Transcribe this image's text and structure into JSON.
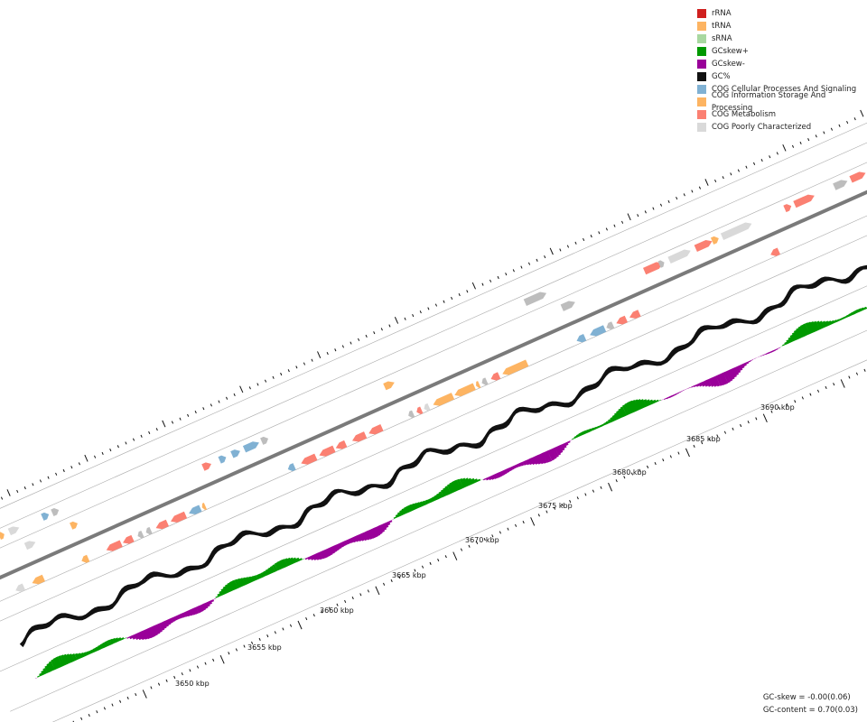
{
  "legend": {
    "items": [
      {
        "label": "rRNA",
        "color": "#d0201f"
      },
      {
        "label": "tRNA",
        "color": "#fdb462"
      },
      {
        "label": "sRNA",
        "color": "#a8d8a0"
      },
      {
        "label": "GCskew+",
        "color": "#009900"
      },
      {
        "label": "GCskew-",
        "color": "#990099"
      },
      {
        "label": "GC%",
        "color": "#111111"
      },
      {
        "label": "COG Cellular Processes And Signaling",
        "color": "#80b1d3"
      },
      {
        "label": "COG Information Storage And Processing",
        "color": "#fdb462"
      },
      {
        "label": "COG Metabolism",
        "color": "#fb8072"
      },
      {
        "label": "COG Poorly Characterized",
        "color": "#d9d9d9"
      }
    ]
  },
  "stats": {
    "gc_skew": "GC-skew = -0.00(0.06)",
    "gc_content": "GC-content = 0.70(0.03)"
  },
  "axis": {
    "unit": "kbp",
    "labels": [
      "3650 kbp",
      "3655 kbp",
      "3660 kbp",
      "3665 kbp",
      "3670 kbp",
      "3675 kbp",
      "3680 kbp",
      "3685 kbp",
      "3690 kbp"
    ]
  },
  "colors": {
    "backbone": "#7a7a7a",
    "ring_line": "#aaaaaa",
    "gc": "#111111",
    "skew_pos": "#009900",
    "skew_neg": "#990099",
    "cps": "#80b1d3",
    "isp": "#fdb462",
    "met": "#fb8072",
    "poor": "#d9d9d9",
    "gray_gene": "#bdbdbd"
  }
}
